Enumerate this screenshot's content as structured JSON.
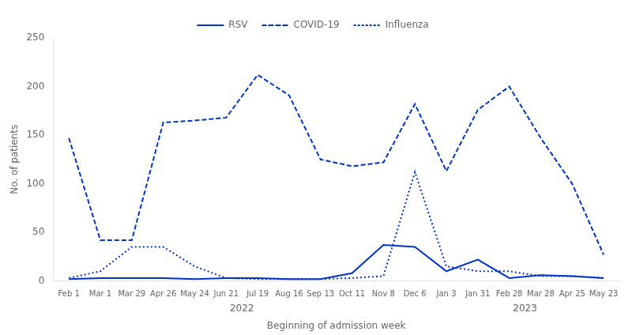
{
  "chart_data": {
    "type": "line",
    "categories": [
      "Feb 1",
      "Mar 1",
      "Mar 29",
      "Apr 26",
      "May 24",
      "Jun 21",
      "Jul 19",
      "Aug 16",
      "Sep 13",
      "Oct 11",
      "Nov 8",
      "Dec 6",
      "Jan 3",
      "Jan 31",
      "Feb 28",
      "Mar 28",
      "Apr 25",
      "May 23"
    ],
    "series": [
      {
        "name": "RSV",
        "color": "#0033CC",
        "line_style": "solid",
        "values": [
          2,
          3,
          3,
          3,
          2,
          3,
          3,
          2,
          2,
          8,
          37,
          35,
          10,
          22,
          3,
          6,
          5,
          3
        ]
      },
      {
        "name": "COVID-19",
        "color": "#0033CC",
        "line_style": "dashed",
        "values": [
          147,
          42,
          42,
          163,
          165,
          168,
          212,
          191,
          125,
          118,
          122,
          182,
          113,
          176,
          200,
          147,
          100,
          27
        ]
      },
      {
        "name": "Influenza",
        "color": "#0033CC",
        "line_style": "dotted",
        "values": [
          3,
          10,
          35,
          35,
          15,
          3,
          2,
          2,
          2,
          3,
          5,
          112,
          15,
          10,
          10,
          5,
          5,
          3
        ]
      }
    ],
    "xlabel": "Beginning of admission week",
    "ylabel": "No. of patients",
    "ylim": [
      0,
      250
    ],
    "yticks": [
      0,
      50,
      100,
      150,
      200,
      250
    ],
    "annotations": [
      {
        "text": "2022",
        "x": 5.5
      },
      {
        "text": "2023",
        "x": 14.5
      }
    ],
    "legend": "top",
    "grid": false
  }
}
